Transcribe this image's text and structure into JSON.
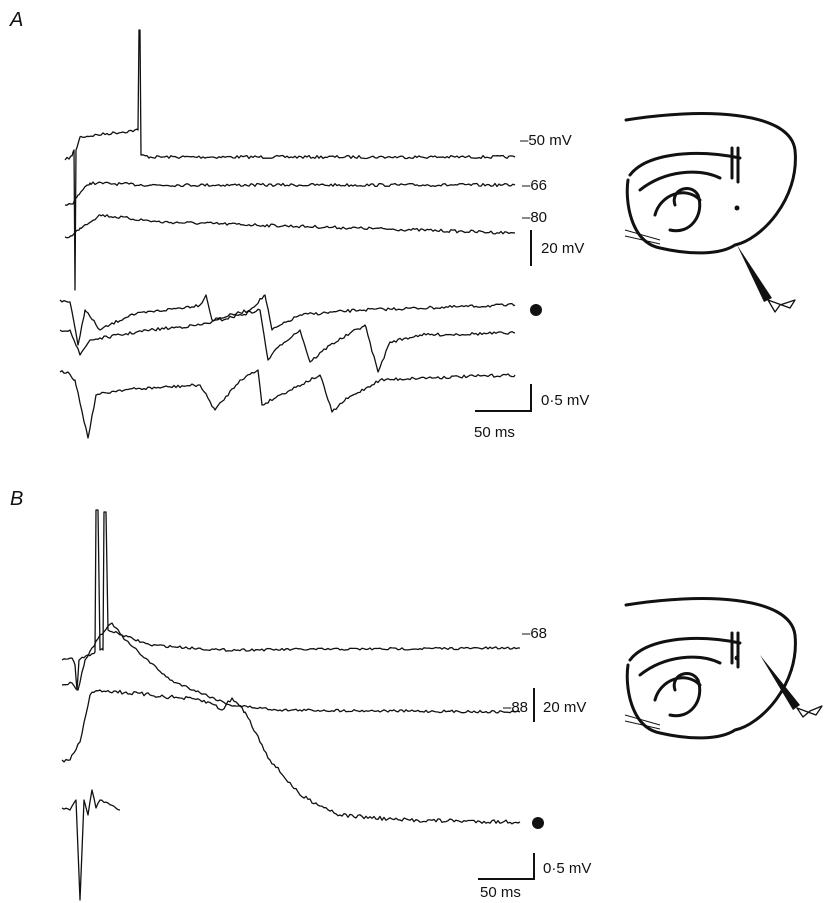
{
  "panels": [
    {
      "label": "A",
      "trace_labels": [
        "–50 mV",
        "–66",
        "–80"
      ],
      "scale_bars": {
        "voltage_upper": "20 mV",
        "voltage_lower": "0·5 mV",
        "time": "50 ms"
      }
    },
    {
      "label": "B",
      "trace_labels": [
        "–68",
        "–88"
      ],
      "scale_bars": {
        "voltage_upper": "20 mV",
        "voltage_lower": "0·5 mV",
        "time": "50 ms"
      }
    }
  ]
}
